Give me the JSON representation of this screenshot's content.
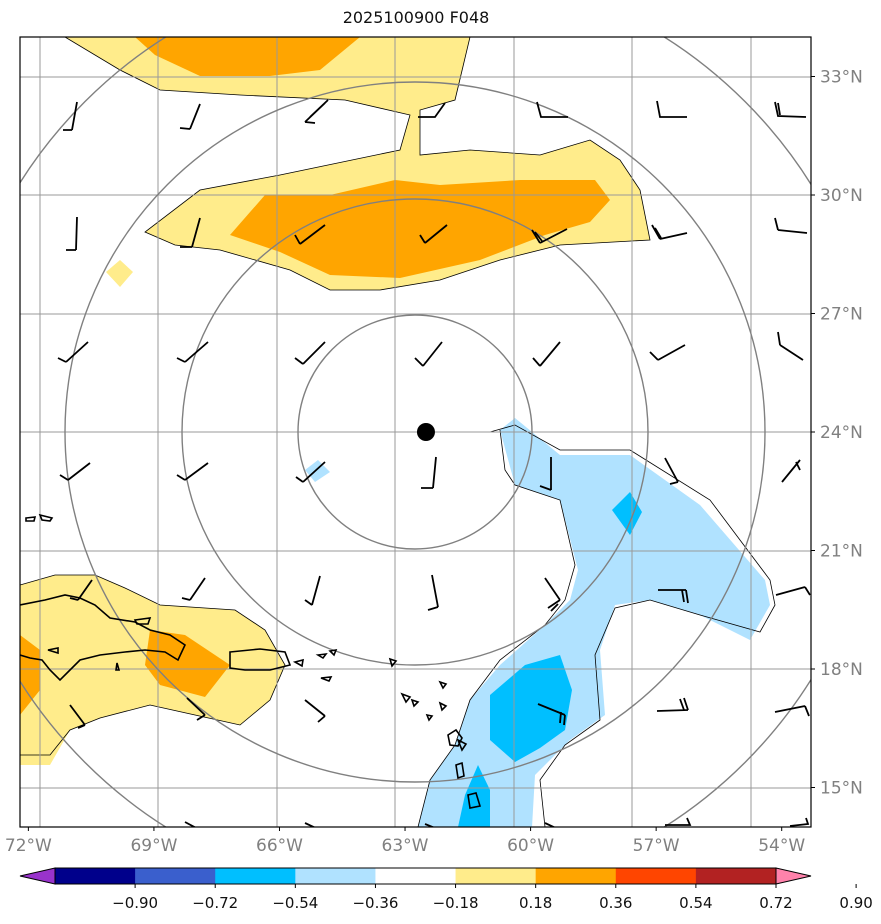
{
  "title": "2025100900 F048",
  "map": {
    "lon_range": [
      -72.2,
      -53.3
    ],
    "lat_range": [
      14.0,
      34.0
    ],
    "lon_ticks": [
      {
        "value": -72,
        "label": "72°W"
      },
      {
        "value": -69,
        "label": "69°W"
      },
      {
        "value": -66,
        "label": "66°W"
      },
      {
        "value": -63,
        "label": "63°W"
      },
      {
        "value": -60,
        "label": "60°W"
      },
      {
        "value": -57,
        "label": "57°W"
      },
      {
        "value": -54,
        "label": "54°W"
      }
    ],
    "lat_ticks": [
      {
        "value": 33,
        "label": "33°N"
      },
      {
        "value": 30,
        "label": "30°N"
      },
      {
        "value": 27,
        "label": "27°N"
      },
      {
        "value": 24,
        "label": "24°N"
      },
      {
        "value": 21,
        "label": "21°N"
      },
      {
        "value": 18,
        "label": "18°N"
      },
      {
        "value": 15,
        "label": "15°N"
      }
    ],
    "center_marker": {
      "lon": -62.5,
      "lat": 24.0
    },
    "range_ring_radii_deg": [
      2.9,
      5.9,
      8.8,
      11.8
    ]
  },
  "colorbar": {
    "colors": [
      "#9933cc",
      "#00008b",
      "#3a5fcd",
      "#00bfff",
      "#b0e2ff",
      "#ffffff",
      "#ffec8b",
      "#ffa500",
      "#ff4500",
      "#b22222",
      "#ff82ab"
    ],
    "tick_labels": [
      "−0.90",
      "−0.72",
      "−0.54",
      "−0.36",
      "−0.18",
      "0.18",
      "0.36",
      "0.54",
      "0.72",
      "0.90"
    ]
  },
  "style": {
    "frame": "#000000",
    "grid": "#999999",
    "ring": "#808080",
    "tick_label": "#808080",
    "coast": "#000000",
    "contour_outline": "#000000"
  }
}
